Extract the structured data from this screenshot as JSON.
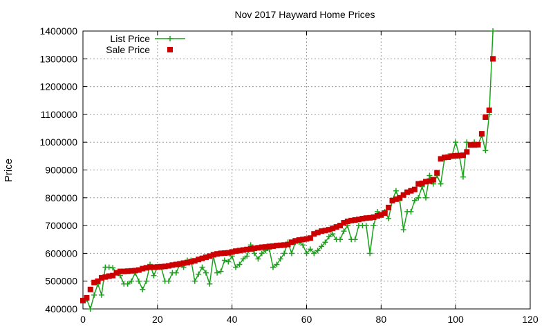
{
  "chart_data": {
    "type": "line",
    "title": "Nov 2017 Hayward Home Prices",
    "xlabel": "",
    "ylabel": "Price",
    "xlim": [
      0,
      120
    ],
    "ylim": [
      400000,
      1400000
    ],
    "xticks": [
      0,
      20,
      40,
      60,
      80,
      100,
      120
    ],
    "yticks": [
      400000,
      500000,
      600000,
      700000,
      800000,
      900000,
      1000000,
      1100000,
      1200000,
      1300000,
      1400000
    ],
    "grid": true,
    "legend_position": "top-left",
    "series": [
      {
        "name": "List Price",
        "style": "line-plus",
        "color": "#1aa31a",
        "x": [
          0,
          1,
          2,
          3,
          4,
          5,
          6,
          7,
          8,
          9,
          10,
          11,
          12,
          13,
          14,
          15,
          16,
          17,
          18,
          19,
          20,
          21,
          22,
          23,
          24,
          25,
          26,
          27,
          28,
          29,
          30,
          31,
          32,
          33,
          34,
          35,
          36,
          37,
          38,
          39,
          40,
          41,
          42,
          43,
          44,
          45,
          46,
          47,
          48,
          49,
          50,
          51,
          52,
          53,
          54,
          55,
          56,
          57,
          58,
          59,
          60,
          61,
          62,
          63,
          64,
          65,
          66,
          67,
          68,
          69,
          70,
          71,
          72,
          73,
          74,
          75,
          76,
          77,
          78,
          79,
          80,
          81,
          82,
          83,
          84,
          85,
          86,
          87,
          88,
          89,
          90,
          91,
          92,
          93,
          94,
          95,
          96,
          97,
          98,
          99,
          100,
          101,
          102,
          103,
          104,
          105,
          106,
          107,
          108,
          109,
          110
        ],
        "y": [
          430000,
          435000,
          400000,
          450000,
          490000,
          450000,
          550000,
          550000,
          548000,
          530000,
          520000,
          490000,
          490000,
          500000,
          530000,
          500000,
          470000,
          500000,
          560000,
          520000,
          550000,
          550000,
          500000,
          500000,
          530000,
          530000,
          560000,
          550000,
          575000,
          575000,
          500000,
          525000,
          550000,
          530000,
          490000,
          590000,
          530000,
          535000,
          575000,
          570000,
          590000,
          550000,
          560000,
          580000,
          590000,
          630000,
          600000,
          580000,
          600000,
          610000,
          615000,
          550000,
          560000,
          580000,
          600000,
          640000,
          600000,
          640000,
          640000,
          630000,
          600000,
          615000,
          600000,
          610000,
          625000,
          640000,
          660000,
          670000,
          650000,
          650000,
          680000,
          700000,
          650000,
          650000,
          700000,
          700000,
          700000,
          600000,
          700000,
          750000,
          740000,
          750000,
          725000,
          790000,
          825000,
          790000,
          685000,
          750000,
          750000,
          790000,
          800000,
          840000,
          800000,
          880000,
          850000,
          880000,
          850000,
          940000,
          950000,
          950000,
          1000000,
          950000,
          875000,
          1000000,
          990000,
          1000000,
          990000,
          1025000,
          970000,
          1100000,
          1400000
        ]
      },
      {
        "name": "Sale Price",
        "style": "square",
        "color": "#cc0000",
        "x": [
          0,
          1,
          2,
          3,
          4,
          5,
          6,
          7,
          8,
          9,
          10,
          11,
          12,
          13,
          14,
          15,
          16,
          17,
          18,
          19,
          20,
          21,
          22,
          23,
          24,
          25,
          26,
          27,
          28,
          29,
          30,
          31,
          32,
          33,
          34,
          35,
          36,
          37,
          38,
          39,
          40,
          41,
          42,
          43,
          44,
          45,
          46,
          47,
          48,
          49,
          50,
          51,
          52,
          53,
          54,
          55,
          56,
          57,
          58,
          59,
          60,
          61,
          62,
          63,
          64,
          65,
          66,
          67,
          68,
          69,
          70,
          71,
          72,
          73,
          74,
          75,
          76,
          77,
          78,
          79,
          80,
          81,
          82,
          83,
          84,
          85,
          86,
          87,
          88,
          89,
          90,
          91,
          92,
          93,
          94,
          95,
          96,
          97,
          98,
          99,
          100,
          101,
          102,
          103,
          104,
          105,
          106,
          107,
          108,
          109,
          110
        ],
        "y": [
          430000,
          440000,
          470000,
          495000,
          500000,
          512000,
          515000,
          518000,
          520000,
          530000,
          535000,
          535000,
          536000,
          537000,
          538000,
          540000,
          545000,
          548000,
          550000,
          550000,
          551000,
          552000,
          553000,
          555000,
          558000,
          560000,
          562000,
          565000,
          567000,
          570000,
          573000,
          578000,
          582000,
          586000,
          590000,
          595000,
          598000,
          600000,
          601000,
          602000,
          605000,
          608000,
          610000,
          612000,
          614000,
          616000,
          618000,
          620000,
          622000,
          623000,
          625000,
          626000,
          628000,
          629000,
          630000,
          632000,
          640000,
          645000,
          648000,
          650000,
          652000,
          655000,
          670000,
          675000,
          680000,
          682000,
          685000,
          690000,
          695000,
          700000,
          710000,
          715000,
          718000,
          720000,
          722000,
          725000,
          727000,
          728000,
          730000,
          735000,
          738000,
          745000,
          765000,
          790000,
          795000,
          800000,
          810000,
          820000,
          825000,
          830000,
          850000,
          852000,
          858000,
          860000,
          865000,
          890000,
          940000,
          945000,
          946000,
          950000,
          951000,
          952000,
          953000,
          965000,
          990000,
          990000,
          991000,
          1030000,
          1090000,
          1115000,
          1300000
        ]
      }
    ]
  }
}
